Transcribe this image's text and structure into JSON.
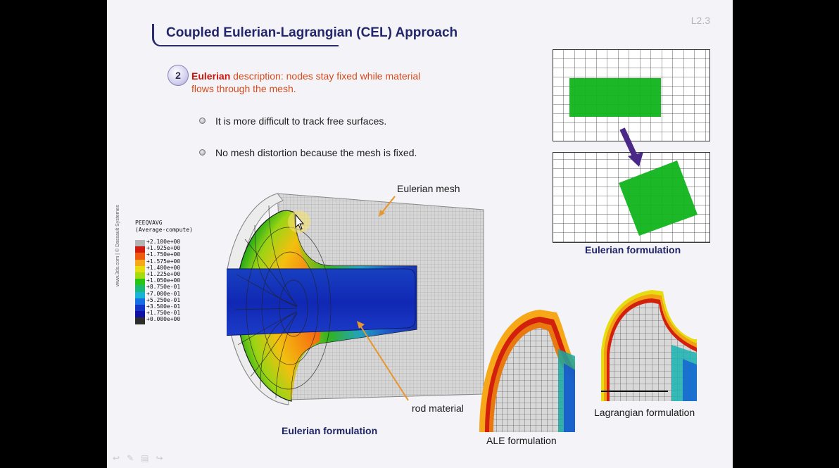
{
  "slide": {
    "number": "L2.3",
    "title": "Coupled Eulerian-Lagrangian (CEL) Approach",
    "point_number": "2",
    "point_keyword": "Eulerian",
    "point_text": " description: nodes stay fixed while material flows through the mesh.",
    "bullets": [
      "It is more difficult to track free surfaces.",
      "No mesh distortion because the mesh is fixed."
    ],
    "watermark": "www.3ds.com | © Dassault Systemes"
  },
  "legend": {
    "title": "PEEQVAVG\n(Average-compute)",
    "labels": [
      "+2.100e+00",
      "+1.925e+00",
      "+1.750e+00",
      "+1.575e+00",
      "+1.400e+00",
      "+1.225e+00",
      "+1.050e+00",
      "+8.750e-01",
      "+7.000e-01",
      "+5.250e-01",
      "+3.500e-01",
      "+1.750e-01",
      "+0.000e+00"
    ],
    "colors": [
      "#b4b4b4",
      "#d21c10",
      "#f05a10",
      "#f6a818",
      "#e6dc10",
      "#a4dc10",
      "#28c414",
      "#18b878",
      "#18b4d8",
      "#1470e4",
      "#1434c8",
      "#1010a4",
      "#2c2c2c"
    ]
  },
  "figures": {
    "eulerian_mesh_label": "Eulerian mesh",
    "rod_material_label": "rod material",
    "eulerian_caption_main": "Eulerian formulation",
    "eulerian_caption_right": "Eulerian formulation",
    "ale_caption": "ALE formulation",
    "lagrangian_caption": "Lagrangian formulation"
  },
  "colors": {
    "title": "#23266a",
    "keyword": "#c8140a",
    "arrow_orange": "#e8962c",
    "arrow_purple": "#4a2888",
    "block_green": "#10b41c"
  },
  "nav_icons": [
    "back-icon",
    "pen-icon",
    "menu-icon",
    "forward-icon"
  ]
}
